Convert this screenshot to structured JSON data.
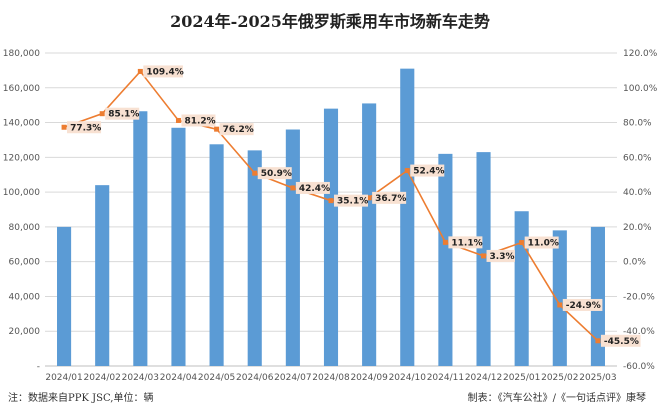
{
  "title": "2024年-2025年俄罗斯乘用车市场新车走势",
  "footer": {
    "source": "注：数据来自PPK JSC,单位：辆",
    "credit": "制表：《汽车公社》/《一句话点评》康琴"
  },
  "colors": {
    "bar": "#5B9BD5",
    "line": "#ED7D31",
    "label_bg": "#F8E1D2",
    "grid": "#D9D9D9"
  },
  "chart_data": {
    "type": "bar+line",
    "categories": [
      "2024/01",
      "2024/02",
      "2024/03",
      "2024/04",
      "2024/05",
      "2024/06",
      "2024/07",
      "2024/08",
      "2024/09",
      "2024/10",
      "2024/11",
      "2024/12",
      "2025/01",
      "2025/02",
      "2025/03"
    ],
    "series": [
      {
        "type": "bar",
        "axis": "left",
        "values": [
          80000,
          104000,
          146500,
          137000,
          127500,
          124000,
          136000,
          148000,
          151000,
          171000,
          122000,
          123000,
          89000,
          78000,
          80000
        ]
      },
      {
        "type": "line",
        "axis": "right",
        "values": [
          77.3,
          85.1,
          109.4,
          81.2,
          76.2,
          50.9,
          42.4,
          35.1,
          36.7,
          52.4,
          11.1,
          3.3,
          11.0,
          -24.9,
          -45.5
        ],
        "labels": [
          "77.3%",
          "85.1%",
          "109.4%",
          "81.2%",
          "76.2%",
          "50.9%",
          "42.4%",
          "35.1%",
          "36.7%",
          "52.4%",
          "11.1%",
          "3.3%",
          "11.0%",
          "-24.9%",
          "-45.5%"
        ]
      }
    ],
    "ylim_left": [
      0,
      180000
    ],
    "yticks_left": [
      "-",
      "20,000",
      "40,000",
      "60,000",
      "80,000",
      "100,000",
      "120,000",
      "140,000",
      "160,000",
      "180,000"
    ],
    "ylim_right": [
      -60,
      120
    ],
    "yticks_right": [
      "-60.0%",
      "-40.0%",
      "-20.0%",
      "0.0%",
      "20.0%",
      "40.0%",
      "60.0%",
      "80.0%",
      "100.0%",
      "120.0%"
    ],
    "grid": true
  }
}
